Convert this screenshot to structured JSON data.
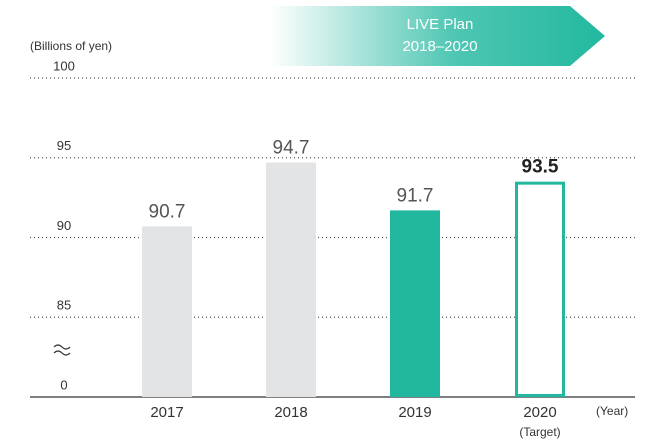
{
  "chart_data": {
    "type": "bar",
    "y_label": "(Billions of yen)",
    "x_label": "(Year)",
    "annotation": {
      "line1": "LIVE Plan",
      "line2": "2018–2020"
    },
    "categories": [
      "2017",
      "2018",
      "2019",
      "2020"
    ],
    "category_notes": [
      null,
      null,
      null,
      "(Target)"
    ],
    "values": [
      90.7,
      94.7,
      91.7,
      93.5
    ],
    "colors": [
      "#e3e4e6",
      "#e3e4e6",
      "#22b8a0",
      "#22b8a0"
    ],
    "outline": [
      false,
      false,
      false,
      true
    ],
    "ylim": [
      80,
      100
    ],
    "yticks": [
      0,
      85,
      90,
      95,
      100
    ],
    "axis_break": true,
    "grid": true
  }
}
